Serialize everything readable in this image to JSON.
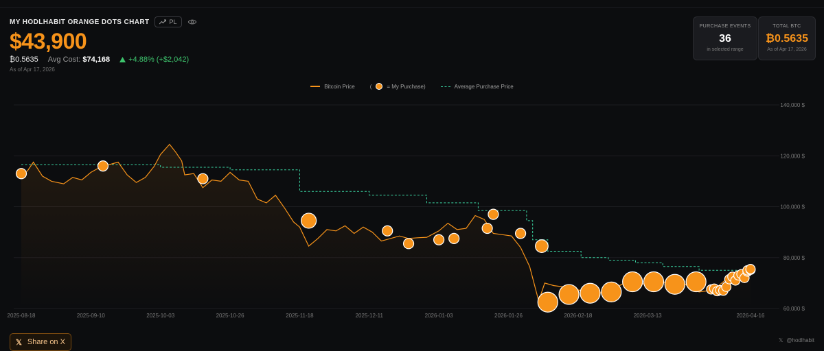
{
  "header": {
    "title": "MY HODLHABIT ORANGE DOTS CHART",
    "pl_label": "PL",
    "value": "$43,900",
    "btc_amount": "₿0.5635",
    "avg_cost_label": "Avg Cost:",
    "avg_cost_value": "$74,168",
    "change": "+4.88% (+$2,042)",
    "as_of": "As of Apr 17, 2026"
  },
  "cards": {
    "purchase_events": {
      "label": "PURCHASE EVENTS",
      "value": "36",
      "sub": "in selected range"
    },
    "total_btc": {
      "label": "TOTAL BTC",
      "value": "₿0.5635",
      "sub": "As of Apr 17, 2026"
    }
  },
  "colors": {
    "accent": "#f7931a",
    "avg_line": "#3bd6a4",
    "positive": "#3ec46d"
  },
  "share": {
    "label": "Share on X"
  },
  "watermark": {
    "handle": "@hodlhabit"
  },
  "chart_data": {
    "type": "line",
    "legend": [
      {
        "key": "btc",
        "label": "Bitcoin Price"
      },
      {
        "key": "purchase",
        "label": "= My Purchase)",
        "prefix": "("
      },
      {
        "key": "avg",
        "label": "Average Purchase Price"
      }
    ],
    "xlim": [
      "2025-08-18",
      "2026-04-16"
    ],
    "ylim": [
      60000,
      140000
    ],
    "x_ticks": [
      "2025-08-18",
      "2025-09-10",
      "2025-10-03",
      "2025-10-26",
      "2025-11-18",
      "2025-12-11",
      "2026-01-03",
      "2026-01-26",
      "2026-02-18",
      "2026-03-13",
      "2026-04-16"
    ],
    "y_ticks": [
      {
        "value": 60000,
        "label": "60,000 $"
      },
      {
        "value": 80000,
        "label": "80,000 $"
      },
      {
        "value": 100000,
        "label": "100,000 $"
      },
      {
        "value": 120000,
        "label": "120,000 $"
      },
      {
        "value": 140000,
        "label": "140,000 $"
      }
    ],
    "grid": true,
    "price_series": [
      [
        "2025-08-18",
        113000
      ],
      [
        "2025-08-20",
        114000
      ],
      [
        "2025-08-22",
        117500
      ],
      [
        "2025-08-25",
        112000
      ],
      [
        "2025-08-28",
        110000
      ],
      [
        "2025-09-01",
        109000
      ],
      [
        "2025-09-04",
        111500
      ],
      [
        "2025-09-07",
        110500
      ],
      [
        "2025-09-10",
        113500
      ],
      [
        "2025-09-13",
        115500
      ],
      [
        "2025-09-16",
        116500
      ],
      [
        "2025-09-19",
        117500
      ],
      [
        "2025-09-22",
        112500
      ],
      [
        "2025-09-25",
        109500
      ],
      [
        "2025-09-28",
        111500
      ],
      [
        "2025-10-01",
        116000
      ],
      [
        "2025-10-03",
        120500
      ],
      [
        "2025-10-06",
        124500
      ],
      [
        "2025-10-08",
        121500
      ],
      [
        "2025-10-10",
        118000
      ],
      [
        "2025-10-11",
        112500
      ],
      [
        "2025-10-14",
        113000
      ],
      [
        "2025-10-17",
        107500
      ],
      [
        "2025-10-20",
        110500
      ],
      [
        "2025-10-23",
        110000
      ],
      [
        "2025-10-26",
        113500
      ],
      [
        "2025-10-29",
        110500
      ],
      [
        "2025-11-01",
        110000
      ],
      [
        "2025-11-04",
        103000
      ],
      [
        "2025-11-07",
        101500
      ],
      [
        "2025-11-10",
        104500
      ],
      [
        "2025-11-13",
        99500
      ],
      [
        "2025-11-16",
        94000
      ],
      [
        "2025-11-18",
        92000
      ],
      [
        "2025-11-21",
        84500
      ],
      [
        "2025-11-24",
        87500
      ],
      [
        "2025-11-27",
        91000
      ],
      [
        "2025-11-30",
        90500
      ],
      [
        "2025-12-03",
        92500
      ],
      [
        "2025-12-06",
        89500
      ],
      [
        "2025-12-09",
        92000
      ],
      [
        "2025-12-12",
        90000
      ],
      [
        "2025-12-15",
        86500
      ],
      [
        "2025-12-18",
        87500
      ],
      [
        "2025-12-21",
        88500
      ],
      [
        "2025-12-24",
        87500
      ],
      [
        "2025-12-27",
        87800
      ],
      [
        "2025-12-30",
        88000
      ],
      [
        "2026-01-03",
        90500
      ],
      [
        "2026-01-06",
        93500
      ],
      [
        "2026-01-09",
        91000
      ],
      [
        "2026-01-12",
        91500
      ],
      [
        "2026-01-15",
        96500
      ],
      [
        "2026-01-18",
        95000
      ],
      [
        "2026-01-21",
        89500
      ],
      [
        "2026-01-24",
        89000
      ],
      [
        "2026-01-27",
        88500
      ],
      [
        "2026-01-30",
        84000
      ],
      [
        "2026-02-02",
        76500
      ],
      [
        "2026-02-05",
        63000
      ],
      [
        "2026-02-07",
        70000
      ],
      [
        "2026-02-10",
        69000
      ],
      [
        "2026-02-13",
        68500
      ],
      [
        "2026-02-16",
        68000
      ],
      [
        "2026-02-19",
        67000
      ],
      [
        "2026-02-22",
        67500
      ],
      [
        "2026-02-25",
        66000
      ],
      [
        "2026-02-28",
        67000
      ],
      [
        "2026-03-03",
        68500
      ],
      [
        "2026-03-06",
        70500
      ],
      [
        "2026-03-09",
        68000
      ],
      [
        "2026-03-12",
        70000
      ],
      [
        "2026-03-15",
        71000
      ],
      [
        "2026-03-18",
        70500
      ],
      [
        "2026-03-21",
        69500
      ],
      [
        "2026-03-24",
        71000
      ],
      [
        "2026-03-27",
        68000
      ],
      [
        "2026-03-30",
        66500
      ],
      [
        "2026-04-02",
        67000
      ],
      [
        "2026-04-05",
        68500
      ],
      [
        "2026-04-08",
        71500
      ],
      [
        "2026-04-11",
        70500
      ],
      [
        "2026-04-14",
        73500
      ],
      [
        "2026-04-16",
        75000
      ]
    ],
    "avg_purchase_price": [
      [
        "2025-08-18",
        116500
      ],
      [
        "2025-10-03",
        115500
      ],
      [
        "2025-10-26",
        114500
      ],
      [
        "2025-11-18",
        114500
      ],
      [
        "2025-11-18",
        106000
      ],
      [
        "2025-12-11",
        104500
      ],
      [
        "2025-12-30",
        101500
      ],
      [
        "2026-01-16",
        98500
      ],
      [
        "2026-02-01",
        94500
      ],
      [
        "2026-02-03",
        87000
      ],
      [
        "2026-02-08",
        82500
      ],
      [
        "2026-02-19",
        80000
      ],
      [
        "2026-02-28",
        79000
      ],
      [
        "2026-03-09",
        78000
      ],
      [
        "2026-03-18",
        76500
      ],
      [
        "2026-03-30",
        75000
      ],
      [
        "2026-04-16",
        74168
      ]
    ],
    "purchases": [
      [
        "2025-08-18",
        113000,
        1
      ],
      [
        "2025-09-14",
        116000,
        1
      ],
      [
        "2025-10-17",
        111000,
        1
      ],
      [
        "2025-11-21",
        94500,
        2
      ],
      [
        "2025-12-17",
        90500,
        1
      ],
      [
        "2025-12-24",
        85500,
        1
      ],
      [
        "2026-01-03",
        87000,
        1
      ],
      [
        "2026-01-08",
        87500,
        1
      ],
      [
        "2026-01-19",
        91500,
        1
      ],
      [
        "2026-01-21",
        97000,
        1
      ],
      [
        "2026-01-30",
        89500,
        1
      ],
      [
        "2026-02-06",
        84500,
        1.5
      ],
      [
        "2026-02-08",
        62500,
        3
      ],
      [
        "2026-02-15",
        65500,
        3
      ],
      [
        "2026-02-22",
        66000,
        3
      ],
      [
        "2026-03-01",
        66500,
        3
      ],
      [
        "2026-03-08",
        70500,
        3
      ],
      [
        "2026-03-15",
        70500,
        3
      ],
      [
        "2026-03-22",
        69500,
        3
      ],
      [
        "2026-03-29",
        70500,
        3
      ],
      [
        "2026-04-03",
        67500,
        0.8
      ],
      [
        "2026-04-04",
        67800,
        0.8
      ],
      [
        "2026-04-05",
        66800,
        0.8
      ],
      [
        "2026-04-06",
        67200,
        0.8
      ],
      [
        "2026-04-07",
        67000,
        0.8
      ],
      [
        "2026-04-08",
        68500,
        0.8
      ],
      [
        "2026-04-09",
        71500,
        0.8
      ],
      [
        "2026-04-10",
        72500,
        0.8
      ],
      [
        "2026-04-11",
        71000,
        0.8
      ],
      [
        "2026-04-12",
        73000,
        0.8
      ],
      [
        "2026-04-13",
        73500,
        0.8
      ],
      [
        "2026-04-14",
        72000,
        0.8
      ],
      [
        "2026-04-15",
        74500,
        0.8
      ],
      [
        "2026-04-15",
        75000,
        0.8
      ],
      [
        "2026-04-16",
        75200,
        0.8
      ],
      [
        "2026-04-16",
        75500,
        0.8
      ]
    ]
  }
}
